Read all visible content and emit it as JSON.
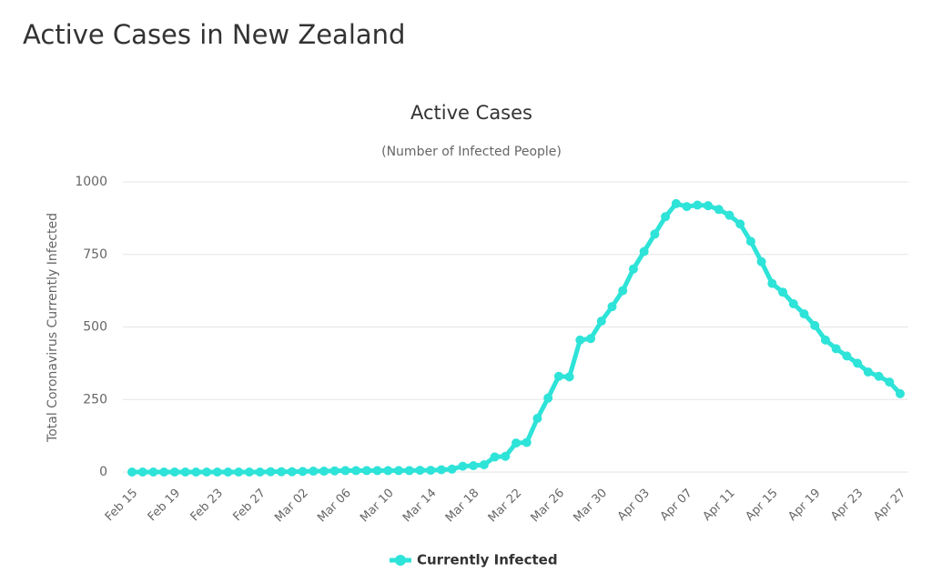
{
  "page_title": "Active Cases in New Zealand",
  "chart_data": {
    "type": "line",
    "title": "Active Cases",
    "subtitle": "(Number of Infected People)",
    "y_label": "Total Coronavirus Currently Infected",
    "categories": [
      "Feb 15",
      null,
      null,
      null,
      "Feb 19",
      null,
      null,
      null,
      "Feb 23",
      null,
      null,
      null,
      "Feb 27",
      null,
      null,
      null,
      "Mar 02",
      null,
      null,
      null,
      "Mar 06",
      null,
      null,
      null,
      "Mar 10",
      null,
      null,
      null,
      "Mar 14",
      null,
      null,
      null,
      "Mar 18",
      null,
      null,
      null,
      "Mar 22",
      null,
      null,
      null,
      "Mar 26",
      null,
      null,
      null,
      "Mar 30",
      null,
      null,
      null,
      "Apr 03",
      null,
      null,
      null,
      "Apr 07",
      null,
      null,
      null,
      "Apr 11",
      null,
      null,
      null,
      "Apr 15",
      null,
      null,
      null,
      "Apr 19",
      null,
      null,
      null,
      "Apr 23",
      null,
      null,
      null,
      "Apr 27"
    ],
    "series": [
      {
        "name": "Currently Infected",
        "color": "#2ee3d8",
        "values": [
          0,
          0,
          0,
          0,
          0,
          0,
          0,
          0,
          0,
          0,
          0,
          0,
          0,
          1,
          1,
          1,
          2,
          3,
          3,
          4,
          5,
          5,
          5,
          5,
          5,
          5,
          5,
          6,
          6,
          8,
          10,
          20,
          22,
          25,
          52,
          54,
          100,
          102,
          185,
          255,
          330,
          328,
          455,
          460,
          520,
          570,
          625,
          700,
          760,
          820,
          880,
          925,
          915,
          920,
          918,
          905,
          885,
          855,
          795,
          725,
          650,
          620,
          580,
          545,
          505,
          455,
          425,
          400,
          375,
          345,
          330,
          310,
          270
        ]
      }
    ],
    "ylim": [
      0,
      1000
    ],
    "yticks": [
      0,
      250,
      500,
      750,
      1000
    ],
    "grid": true,
    "legend": "bottom"
  }
}
